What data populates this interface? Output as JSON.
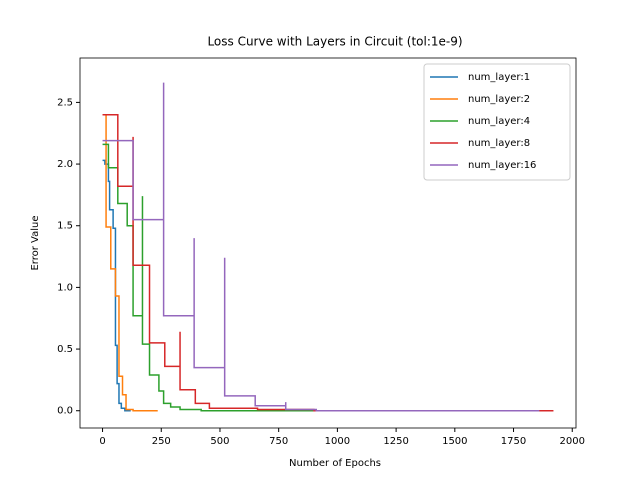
{
  "chart_data": {
    "type": "line",
    "title": "Loss Curve with Layers in Circuit (tol:1e-9)",
    "x_label": "Number of Epochs",
    "y_label": "Error Value",
    "xlim": [
      -96,
      2016
    ],
    "ylim": [
      -0.14,
      2.86
    ],
    "xticks": [
      0,
      250,
      500,
      750,
      1000,
      1250,
      1500,
      1750,
      2000
    ],
    "yticks": [
      {
        "value": 0,
        "label": "0.0"
      },
      {
        "value": 0.5,
        "label": "0.5"
      },
      {
        "value": 1,
        "label": "1.0"
      },
      {
        "value": 1.5,
        "label": "1.5"
      },
      {
        "value": 2,
        "label": "2.0"
      },
      {
        "value": 2.5,
        "label": "2.5"
      }
    ],
    "legend": "upper right",
    "series": [
      {
        "name": "num_layer:1",
        "color": "#1f77b4",
        "x": [
          0,
          10,
          10,
          25,
          25,
          30,
          30,
          45,
          45,
          55,
          55,
          62,
          62,
          70,
          70,
          80,
          80,
          95,
          95,
          120
        ],
        "values": [
          2.03,
          2.03,
          2.0,
          2.0,
          1.86,
          1.86,
          1.63,
          1.63,
          1.48,
          1.48,
          0.53,
          0.53,
          0.22,
          0.22,
          0.06,
          0.06,
          0.02,
          0.02,
          0,
          0
        ]
      },
      {
        "name": "num_layer:2",
        "color": "#ff7f0e",
        "x": [
          0,
          15,
          15,
          35,
          35,
          55,
          55,
          70,
          70,
          85,
          85,
          100,
          100,
          130,
          130,
          235
        ],
        "values": [
          2.4,
          2.4,
          1.49,
          1.49,
          1.15,
          1.15,
          0.93,
          0.93,
          0.28,
          0.28,
          0.13,
          0.13,
          0.01,
          0.01,
          0,
          0
        ]
      },
      {
        "name": "num_layer:4",
        "color": "#2ca02c",
        "x": [
          0,
          25,
          25,
          65,
          65,
          105,
          105,
          130,
          130,
          170,
          170,
          170,
          200,
          200,
          240,
          240,
          260,
          260,
          290,
          290,
          330,
          330,
          420,
          420,
          900
        ],
        "values": [
          2.16,
          2.16,
          1.97,
          1.97,
          1.68,
          1.68,
          1.5,
          1.5,
          0.77,
          0.77,
          1.74,
          0.54,
          0.54,
          0.29,
          0.29,
          0.16,
          0.16,
          0.06,
          0.06,
          0.03,
          0.03,
          0.01,
          0.01,
          0,
          0
        ]
      },
      {
        "name": "num_layer:8",
        "color": "#d62728",
        "x": [
          0,
          65,
          65,
          130,
          130,
          130,
          200,
          200,
          265,
          265,
          330,
          330,
          330,
          395,
          395,
          455,
          455,
          660,
          660,
          900,
          900,
          1920
        ],
        "values": [
          2.4,
          2.4,
          1.82,
          1.82,
          2.22,
          1.18,
          1.18,
          0.55,
          0.55,
          0.36,
          0.36,
          0.64,
          0.17,
          0.17,
          0.06,
          0.06,
          0.02,
          0.02,
          0.01,
          0.01,
          0,
          0
        ]
      },
      {
        "name": "num_layer:16",
        "color": "#9467bd",
        "x": [
          0,
          130,
          130,
          260,
          260,
          260,
          390,
          390,
          390,
          520,
          520,
          520,
          650,
          650,
          780,
          780,
          780,
          910,
          910,
          1860
        ],
        "values": [
          2.19,
          2.19,
          1.55,
          1.55,
          2.66,
          0.77,
          0.77,
          1.4,
          0.35,
          0.35,
          1.24,
          0.12,
          0.12,
          0.04,
          0.04,
          0.07,
          0.01,
          0.01,
          0,
          0
        ]
      }
    ]
  }
}
